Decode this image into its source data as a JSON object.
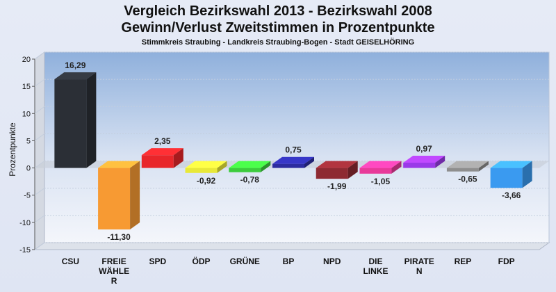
{
  "title": "Vergleich Bezirkswahl 2013 - Bezirkswahl 2008",
  "subtitle": "Gewinn/Verlust Zweitstimmen in Prozentpunkte",
  "subsubtitle": "Stimmkreis Straubing - Landkreis Straubing-Bogen - Stadt GEISELHÖRING",
  "chart_data": {
    "type": "bar",
    "title": "Vergleich Bezirkswahl 2013 - Bezirkswahl 2008",
    "ylabel": "Prozentpunkte",
    "xlabel": "",
    "ylim": [
      -15,
      20
    ],
    "yticks": [
      20,
      15,
      10,
      5,
      0,
      -5,
      -10,
      -15
    ],
    "grid": true,
    "categories": [
      "CSU",
      "FREIE WÄHLER",
      "SPD",
      "ÖDP",
      "GRÜNE",
      "BP",
      "NPD",
      "DIE LINKE",
      "PIRATEN",
      "REP",
      "FDP"
    ],
    "category_lines": [
      [
        "CSU"
      ],
      [
        "FREIE",
        "WÄHLE",
        "R"
      ],
      [
        "SPD"
      ],
      [
        "ÖDP"
      ],
      [
        "GRÜNE"
      ],
      [
        "BP"
      ],
      [
        "NPD"
      ],
      [
        "DIE",
        "LINKE"
      ],
      [
        "PIRATE",
        "N"
      ],
      [
        "REP"
      ],
      [
        "FDP"
      ]
    ],
    "values": [
      16.29,
      -11.3,
      2.35,
      -0.92,
      -0.78,
      0.75,
      -1.99,
      -1.05,
      0.97,
      -0.65,
      -3.66
    ],
    "value_labels": [
      "16,29",
      "-11,30",
      "2,35",
      "-0,92",
      "-0,78",
      "0,75",
      "-1,99",
      "-1,05",
      "0,97",
      "-0,65",
      "-3,66"
    ],
    "colors": [
      "#2b2f36",
      "#f79a33",
      "#e8262a",
      "#e8e838",
      "#3ccc3c",
      "#2c2ca0",
      "#8e2a32",
      "#e83a9a",
      "#9a3ae8",
      "#8e8e8e",
      "#3a9af0"
    ]
  }
}
